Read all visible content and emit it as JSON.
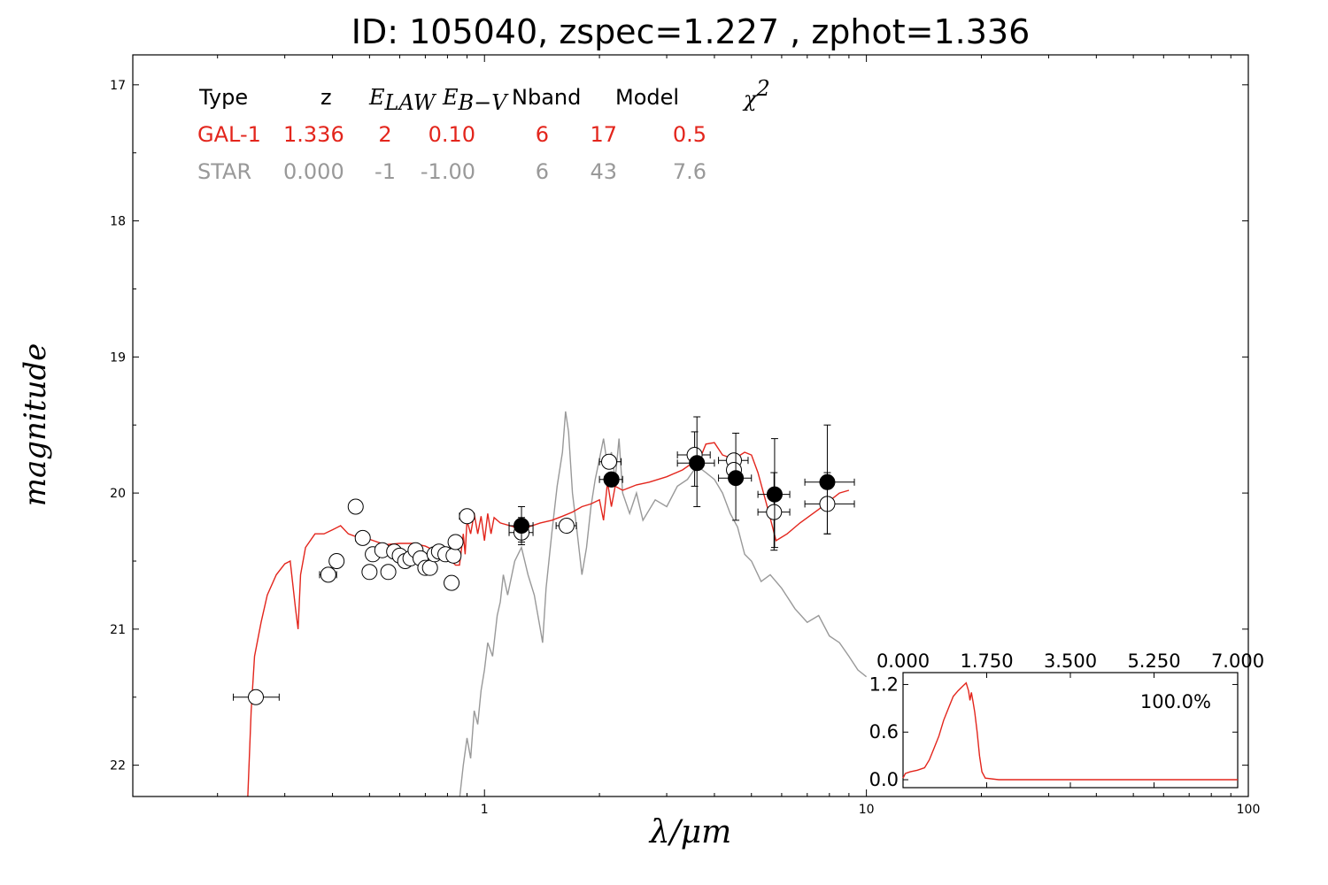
{
  "title": "ID:  105040, zspec=1.227 , zphot=1.336",
  "colors": {
    "gal": "#e3251c",
    "star": "#999999",
    "axes": "#000000"
  },
  "summary_table": {
    "headers": [
      "Type",
      "z",
      "E_LAW",
      "E_B−V",
      "Nband",
      "Model",
      "χ²"
    ],
    "rows": [
      {
        "kind": "gal",
        "cells": [
          "GAL-1",
          "1.336",
          "2",
          "0.10",
          "6",
          "17",
          "0.5"
        ]
      },
      {
        "kind": "star",
        "cells": [
          "STAR",
          "0.000",
          "-1",
          "-1.00",
          "6",
          "43",
          "7.6"
        ]
      }
    ]
  },
  "inset": {
    "percent_label": "100.0%",
    "x_ticks": [
      "0.000",
      "1.750",
      "3.500",
      "5.250",
      "7.000"
    ],
    "y_ticks": [
      "0.0",
      "0.6",
      "1.2"
    ]
  },
  "chart_data": {
    "type": "scatter",
    "title": "ID:  105040, zspec=1.227 , zphot=1.336",
    "xlabel": "λ/μm",
    "ylabel": "magnitude",
    "x_scale": "log",
    "xlim": [
      0.12,
      100
    ],
    "ylim": [
      22.23,
      16.78
    ],
    "y_inverted": true,
    "x_ticks": [
      "1",
      "10",
      "100"
    ],
    "y_ticks": [
      "17",
      "18",
      "19",
      "20",
      "21",
      "22"
    ],
    "series": [
      {
        "name": "GAL-1",
        "kind": "line",
        "points": [
          [
            0.24,
            22.23
          ],
          [
            0.245,
            21.6
          ],
          [
            0.25,
            21.2
          ],
          [
            0.26,
            20.95
          ],
          [
            0.27,
            20.75
          ],
          [
            0.285,
            20.6
          ],
          [
            0.3,
            20.52
          ],
          [
            0.31,
            20.5
          ],
          [
            0.32,
            20.85
          ],
          [
            0.325,
            21.0
          ],
          [
            0.33,
            20.6
          ],
          [
            0.34,
            20.4
          ],
          [
            0.36,
            20.3
          ],
          [
            0.38,
            20.3
          ],
          [
            0.4,
            20.27
          ],
          [
            0.42,
            20.24
          ],
          [
            0.44,
            20.3
          ],
          [
            0.46,
            20.32
          ],
          [
            0.48,
            20.3
          ],
          [
            0.5,
            20.34
          ],
          [
            0.55,
            20.38
          ],
          [
            0.6,
            20.37
          ],
          [
            0.65,
            20.37
          ],
          [
            0.7,
            20.39
          ],
          [
            0.75,
            20.43
          ],
          [
            0.8,
            20.47
          ],
          [
            0.84,
            20.53
          ],
          [
            0.86,
            20.53
          ],
          [
            0.87,
            20.42
          ],
          [
            0.88,
            20.3
          ],
          [
            0.89,
            20.45
          ],
          [
            0.9,
            20.2
          ],
          [
            0.92,
            20.3
          ],
          [
            0.94,
            20.15
          ],
          [
            0.96,
            20.3
          ],
          [
            0.98,
            20.17
          ],
          [
            1.0,
            20.35
          ],
          [
            1.02,
            20.15
          ],
          [
            1.04,
            20.3
          ],
          [
            1.06,
            20.18
          ],
          [
            1.1,
            20.22
          ],
          [
            1.2,
            20.25
          ],
          [
            1.3,
            20.25
          ],
          [
            1.4,
            20.22
          ],
          [
            1.5,
            20.2
          ],
          [
            1.6,
            20.17
          ],
          [
            1.7,
            20.14
          ],
          [
            1.8,
            20.1
          ],
          [
            1.9,
            20.08
          ],
          [
            2.0,
            20.05
          ],
          [
            2.05,
            20.2
          ],
          [
            2.1,
            19.92
          ],
          [
            2.15,
            20.1
          ],
          [
            2.2,
            19.95
          ],
          [
            2.3,
            19.98
          ],
          [
            2.5,
            19.94
          ],
          [
            2.7,
            19.92
          ],
          [
            3.0,
            19.88
          ],
          [
            3.3,
            19.83
          ],
          [
            3.5,
            19.78
          ],
          [
            3.7,
            19.72
          ],
          [
            3.8,
            19.64
          ],
          [
            4.0,
            19.63
          ],
          [
            4.2,
            19.72
          ],
          [
            4.5,
            19.75
          ],
          [
            4.8,
            19.7
          ],
          [
            5.0,
            19.72
          ],
          [
            5.2,
            19.85
          ],
          [
            5.5,
            20.1
          ],
          [
            5.8,
            20.35
          ],
          [
            6.2,
            20.3
          ],
          [
            6.7,
            20.22
          ],
          [
            7.5,
            20.12
          ],
          [
            8.5,
            20.0
          ],
          [
            9.0,
            19.98
          ]
        ]
      },
      {
        "name": "STAR",
        "kind": "line",
        "points": [
          [
            0.86,
            22.25
          ],
          [
            0.88,
            22.0
          ],
          [
            0.9,
            21.8
          ],
          [
            0.92,
            21.95
          ],
          [
            0.94,
            21.6
          ],
          [
            0.96,
            21.7
          ],
          [
            0.98,
            21.45
          ],
          [
            1.0,
            21.3
          ],
          [
            1.02,
            21.1
          ],
          [
            1.05,
            21.2
          ],
          [
            1.08,
            20.9
          ],
          [
            1.1,
            20.8
          ],
          [
            1.12,
            20.6
          ],
          [
            1.15,
            20.75
          ],
          [
            1.2,
            20.5
          ],
          [
            1.25,
            20.4
          ],
          [
            1.3,
            20.6
          ],
          [
            1.35,
            20.75
          ],
          [
            1.4,
            21.0
          ],
          [
            1.42,
            21.1
          ],
          [
            1.45,
            20.7
          ],
          [
            1.5,
            20.3
          ],
          [
            1.55,
            19.95
          ],
          [
            1.6,
            19.7
          ],
          [
            1.63,
            19.4
          ],
          [
            1.66,
            19.55
          ],
          [
            1.7,
            20.0
          ],
          [
            1.75,
            20.3
          ],
          [
            1.8,
            20.6
          ],
          [
            1.85,
            20.4
          ],
          [
            1.9,
            20.1
          ],
          [
            1.95,
            19.9
          ],
          [
            2.0,
            19.75
          ],
          [
            2.05,
            19.6
          ],
          [
            2.1,
            19.8
          ],
          [
            2.15,
            19.7
          ],
          [
            2.2,
            19.9
          ],
          [
            2.25,
            19.6
          ],
          [
            2.3,
            20.0
          ],
          [
            2.4,
            20.15
          ],
          [
            2.5,
            20.0
          ],
          [
            2.6,
            20.2
          ],
          [
            2.8,
            20.05
          ],
          [
            3.0,
            20.1
          ],
          [
            3.2,
            19.95
          ],
          [
            3.4,
            19.9
          ],
          [
            3.6,
            19.8
          ],
          [
            3.8,
            19.85
          ],
          [
            4.0,
            19.9
          ],
          [
            4.2,
            20.0
          ],
          [
            4.4,
            20.15
          ],
          [
            4.6,
            20.25
          ],
          [
            4.8,
            20.45
          ],
          [
            5.0,
            20.5
          ],
          [
            5.3,
            20.65
          ],
          [
            5.6,
            20.6
          ],
          [
            6.0,
            20.7
          ],
          [
            6.5,
            20.85
          ],
          [
            7.0,
            20.95
          ],
          [
            7.5,
            20.9
          ],
          [
            8.0,
            21.05
          ],
          [
            8.5,
            21.1
          ],
          [
            9.0,
            21.2
          ],
          [
            9.5,
            21.3
          ],
          [
            10.0,
            21.35
          ]
        ]
      },
      {
        "name": "observed (open)",
        "kind": "points",
        "marker": "open",
        "points": [
          {
            "x": 0.252,
            "y": 21.5,
            "xerr": [
              0.22,
              0.29
            ]
          },
          {
            "x": 0.39,
            "y": 20.6,
            "xerr": [
              0.37,
              0.41
            ]
          },
          {
            "x": 0.41,
            "y": 20.5
          },
          {
            "x": 0.46,
            "y": 20.1
          },
          {
            "x": 0.48,
            "y": 20.33,
            "xerr": [
              0.46,
              0.5
            ]
          },
          {
            "x": 0.5,
            "y": 20.58
          },
          {
            "x": 0.51,
            "y": 20.45
          },
          {
            "x": 0.54,
            "y": 20.42
          },
          {
            "x": 0.56,
            "y": 20.58
          },
          {
            "x": 0.58,
            "y": 20.43
          },
          {
            "x": 0.6,
            "y": 20.46
          },
          {
            "x": 0.62,
            "y": 20.5
          },
          {
            "x": 0.64,
            "y": 20.48
          },
          {
            "x": 0.66,
            "y": 20.42
          },
          {
            "x": 0.68,
            "y": 20.48
          },
          {
            "x": 0.7,
            "y": 20.55
          },
          {
            "x": 0.72,
            "y": 20.55
          },
          {
            "x": 0.74,
            "y": 20.45
          },
          {
            "x": 0.76,
            "y": 20.43
          },
          {
            "x": 0.79,
            "y": 20.45
          },
          {
            "x": 0.82,
            "y": 20.66
          },
          {
            "x": 0.83,
            "y": 20.46
          },
          {
            "x": 0.84,
            "y": 20.36
          },
          {
            "x": 0.9,
            "y": 20.17,
            "xerr": [
              0.86,
              0.94
            ]
          },
          {
            "x": 1.25,
            "y": 20.29,
            "xerr": [
              1.16,
              1.34
            ],
            "yerr": [
              20.18,
              20.38
            ]
          },
          {
            "x": 1.64,
            "y": 20.24,
            "xerr": [
              1.54,
              1.74
            ]
          },
          {
            "x": 2.12,
            "y": 19.77,
            "xerr": [
              2.0,
              2.28
            ]
          },
          {
            "x": 2.15,
            "y": 19.9
          },
          {
            "x": 3.55,
            "y": 19.72,
            "xerr": [
              3.2,
              3.9
            ],
            "yerr": [
              19.55,
              19.95
            ]
          },
          {
            "x": 4.5,
            "y": 19.76,
            "xerr": [
              4.1,
              4.9
            ]
          },
          {
            "x": 4.5,
            "y": 19.83
          },
          {
            "x": 5.73,
            "y": 20.14,
            "xerr": [
              5.2,
              6.3
            ],
            "yerr": [
              19.85,
              20.42
            ]
          },
          {
            "x": 7.9,
            "y": 20.08,
            "xerr": [
              6.9,
              9.3
            ],
            "yerr": [
              19.85,
              20.3
            ]
          }
        ]
      },
      {
        "name": "observed (filled)",
        "kind": "points",
        "marker": "filled",
        "points": [
          {
            "x": 1.25,
            "y": 20.24,
            "xerr": [
              1.16,
              1.34
            ],
            "yerr": [
              20.1,
              20.36
            ]
          },
          {
            "x": 2.15,
            "y": 19.9,
            "xerr": [
              2.0,
              2.3
            ]
          },
          {
            "x": 3.6,
            "y": 19.78,
            "xerr": [
              3.2,
              4.0
            ],
            "yerr": [
              19.44,
              20.1
            ]
          },
          {
            "x": 4.55,
            "y": 19.89,
            "xerr": [
              4.1,
              5.0
            ],
            "yerr": [
              19.56,
              20.2
            ]
          },
          {
            "x": 5.75,
            "y": 20.01,
            "xerr": [
              5.2,
              6.3
            ],
            "yerr": [
              19.6,
              20.4
            ]
          },
          {
            "x": 7.9,
            "y": 19.92,
            "xerr": [
              6.9,
              9.3
            ],
            "yerr": [
              19.5,
              20.3
            ]
          }
        ]
      }
    ],
    "inset_chart": {
      "type": "line",
      "xlim": [
        0,
        7.0
      ],
      "ylim": [
        -0.1,
        1.35
      ],
      "x_ticks": [
        0,
        1.75,
        3.5,
        5.25,
        7.0
      ],
      "y_ticks": [
        0.0,
        0.6,
        1.2
      ],
      "annotation": "100.0%",
      "points": [
        [
          0.0,
          0.02
        ],
        [
          0.05,
          0.08
        ],
        [
          0.15,
          0.1
        ],
        [
          0.3,
          0.12
        ],
        [
          0.45,
          0.15
        ],
        [
          0.55,
          0.25
        ],
        [
          0.65,
          0.4
        ],
        [
          0.75,
          0.55
        ],
        [
          0.85,
          0.75
        ],
        [
          0.95,
          0.9
        ],
        [
          1.05,
          1.05
        ],
        [
          1.15,
          1.12
        ],
        [
          1.25,
          1.18
        ],
        [
          1.32,
          1.22
        ],
        [
          1.37,
          1.12
        ],
        [
          1.4,
          1.0
        ],
        [
          1.43,
          1.1
        ],
        [
          1.46,
          1.0
        ],
        [
          1.5,
          0.85
        ],
        [
          1.55,
          0.6
        ],
        [
          1.6,
          0.3
        ],
        [
          1.65,
          0.1
        ],
        [
          1.72,
          0.02
        ],
        [
          2.0,
          0.0
        ],
        [
          3.0,
          0.0
        ],
        [
          4.0,
          0.0
        ],
        [
          5.0,
          0.0
        ],
        [
          6.0,
          0.0
        ],
        [
          7.0,
          0.0
        ]
      ]
    }
  }
}
